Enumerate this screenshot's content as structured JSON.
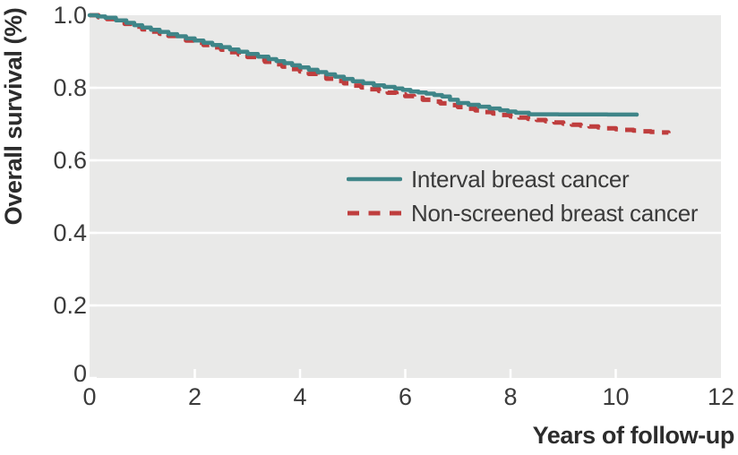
{
  "colors": {
    "panel_background": "#e9e9e8",
    "gridline": "#ffffff",
    "tick_label_text": "#3b3b3b",
    "axis_title_text": "#2c2c2c",
    "interval_line": "#3f8588",
    "non_screened_line": "#bf3e3e"
  },
  "chart_data": {
    "type": "line",
    "title": "",
    "xlabel": "Years of follow-up",
    "ylabel": "Overall survival (%)",
    "xlim": [
      0,
      12
    ],
    "ylim": [
      0,
      1.0
    ],
    "xticks": [
      0,
      2,
      4,
      6,
      8,
      10,
      12
    ],
    "xtick_labels": [
      "0",
      "2",
      "4",
      "6",
      "8",
      "10",
      "12"
    ],
    "ytick_values": [
      1.0,
      0.8,
      0.6,
      0.4,
      0.2,
      0
    ],
    "ytick_labels": [
      "1.0",
      "0.8",
      "0.6",
      "0.4",
      "0.2",
      "0"
    ],
    "grid": "horizontal white gridlines on light gray panel, white tick notches on bottom edge",
    "legend_position": "inside plot, center-right",
    "curve_style": "Kaplan-Meier step curves",
    "series": [
      {
        "name": "Interval breast cancer",
        "color": "#3f8588",
        "line_style": "solid",
        "points": [
          [
            0,
            1.0
          ],
          [
            0.3,
            0.993
          ],
          [
            0.7,
            0.979
          ],
          [
            1.0,
            0.966
          ],
          [
            1.5,
            0.948
          ],
          [
            2.0,
            0.93
          ],
          [
            2.5,
            0.912
          ],
          [
            3.0,
            0.893
          ],
          [
            3.4,
            0.879
          ],
          [
            3.7,
            0.868
          ],
          [
            4.0,
            0.856
          ],
          [
            4.5,
            0.837
          ],
          [
            5.0,
            0.818
          ],
          [
            5.4,
            0.807
          ],
          [
            5.8,
            0.798
          ],
          [
            6.1,
            0.79
          ],
          [
            6.4,
            0.784
          ],
          [
            6.7,
            0.776
          ],
          [
            7.0,
            0.758
          ],
          [
            7.4,
            0.748
          ],
          [
            7.8,
            0.738
          ],
          [
            8.1,
            0.731
          ],
          [
            8.35,
            0.727
          ],
          [
            10.4,
            0.726
          ]
        ]
      },
      {
        "name": "Non-screened breast cancer",
        "color": "#bf3e3e",
        "line_style": "dashed",
        "points": [
          [
            0,
            1.0
          ],
          [
            0.5,
            0.984
          ],
          [
            1.0,
            0.961
          ],
          [
            1.5,
            0.943
          ],
          [
            2.0,
            0.924
          ],
          [
            2.5,
            0.905
          ],
          [
            3.0,
            0.885
          ],
          [
            3.5,
            0.865
          ],
          [
            4.0,
            0.845
          ],
          [
            4.5,
            0.825
          ],
          [
            5.0,
            0.806
          ],
          [
            5.5,
            0.791
          ],
          [
            6.0,
            0.777
          ],
          [
            6.5,
            0.762
          ],
          [
            7.0,
            0.747
          ],
          [
            7.5,
            0.733
          ],
          [
            8.0,
            0.721
          ],
          [
            8.5,
            0.711
          ],
          [
            9.0,
            0.701
          ],
          [
            9.5,
            0.693
          ],
          [
            10.0,
            0.686
          ],
          [
            10.5,
            0.68
          ],
          [
            11.0,
            0.675
          ]
        ]
      }
    ]
  }
}
